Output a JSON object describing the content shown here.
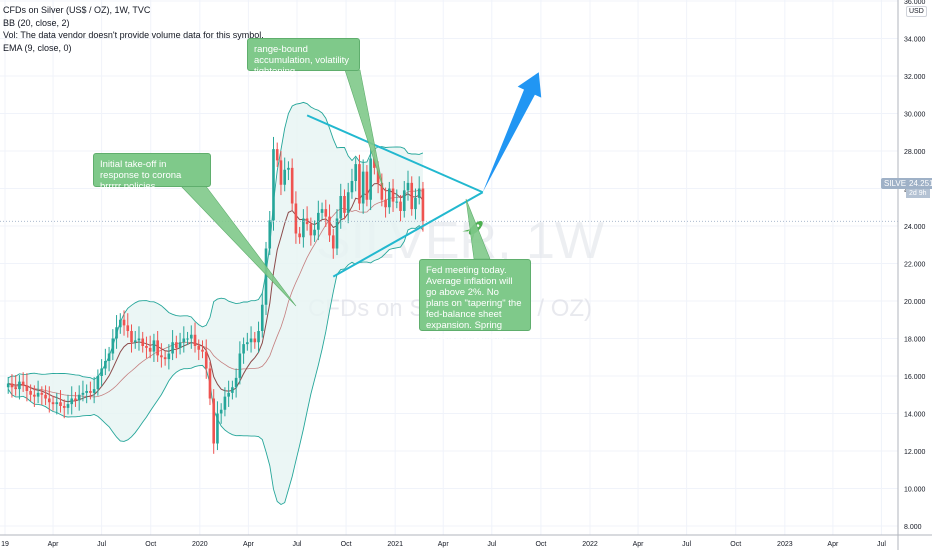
{
  "legend": {
    "title": "CFDs on Silver (US$ / OZ), 1W, TVC",
    "bb": "BB (20, close, 2)",
    "vol": "Vol: The data vendor doesn't provide volume data for this symbol.",
    "ema": "EMA (9, close, 0)"
  },
  "watermark": {
    "symbol": "SILVER, 1W",
    "name": "CFDs on Silver (US$ / OZ)"
  },
  "currency": "USD",
  "price_tag": {
    "symbol": "SILVER",
    "price": "24.251",
    "countdown": "2d 9h"
  },
  "annotations": [
    {
      "text": "Initial take-off in response to corona brrrrr policies"
    },
    {
      "text": "range-bound accumulation, volatility tightening"
    },
    {
      "text": "Fed meeting today. Average inflation will go above 2%. No plans on \"tapering\" the fed-balance sheet expansion. Spring breakout incoming?"
    }
  ],
  "colors": {
    "up": "#26a69a",
    "down": "#ef5350",
    "bb": "#26a69a",
    "bb_fill": "#e6f4f2",
    "ema": "#8b4a4a",
    "trendline": "#22b8cf",
    "arrow": "#2196f3",
    "rocket": "#4caf50",
    "callout": "#7fc98a"
  },
  "chart_data": {
    "type": "candlestick",
    "symbol": "SILVER",
    "interval": "1W",
    "ylim": [
      8,
      36
    ],
    "y_ticks": [
      "8.000",
      "10.000",
      "12.000",
      "14.000",
      "16.000",
      "18.000",
      "20.000",
      "22.000",
      "24.000",
      "26.000",
      "28.000",
      "30.000",
      "32.000",
      "34.000",
      "36.000"
    ],
    "x_ticks": [
      "19",
      "Apr",
      "Jul",
      "Oct",
      "2020",
      "Apr",
      "Jul",
      "Oct",
      "2021",
      "Apr",
      "Jul",
      "Oct",
      "2022",
      "Apr",
      "Jul",
      "Oct",
      "2023",
      "Apr",
      "Jul"
    ],
    "x_range": [
      "2019-01-01",
      "2023-08-01"
    ],
    "last_price": 24.251,
    "weekly_close": [
      15.6,
      15.4,
      15.3,
      15.7,
      15.5,
      15.2,
      15.0,
      14.9,
      15.1,
      15.0,
      14.8,
      14.6,
      14.5,
      14.6,
      14.4,
      14.3,
      14.5,
      14.8,
      14.7,
      15.0,
      15.1,
      15.2,
      15.1,
      15.3,
      16.0,
      16.4,
      16.8,
      17.2,
      18.0,
      18.6,
      19.0,
      18.7,
      18.4,
      17.8,
      17.9,
      18.0,
      17.6,
      17.5,
      17.3,
      17.9,
      17.1,
      17.0,
      16.9,
      17.2,
      17.8,
      17.5,
      17.8,
      18.0,
      18.0,
      18.2,
      17.6,
      17.4,
      17.3,
      16.4,
      14.8,
      12.4,
      14.0,
      14.2,
      14.9,
      15.1,
      15.4,
      15.9,
      17.2,
      17.7,
      17.8,
      18.0,
      17.8,
      18.4,
      19.8,
      22.8,
      24.3,
      28.1,
      27.5,
      26.2,
      27.0,
      27.1,
      25.2,
      23.6,
      23.4,
      24.4,
      24.1,
      23.5,
      23.8,
      24.7,
      24.9,
      24.5,
      23.5,
      22.8,
      24.4,
      25.6,
      24.7,
      25.8,
      26.4,
      27.3,
      25.2,
      26.9,
      25.4,
      27.6,
      27.1,
      26.3,
      25.4,
      25.0,
      26.0,
      25.3,
      25.3,
      24.8,
      25.9,
      26.3,
      24.9,
      25.5,
      26.0,
      24.251
    ],
    "annotations": [
      "Initial take-off in response to corona brrrrr policies",
      "range-bound accumulation, volatility tightening",
      "Fed meeting today. Average inflation will go above 2%. No plans on \"tapering\" the fed-balance sheet expansion. Spring breakout incoming?"
    ],
    "grid": true
  }
}
